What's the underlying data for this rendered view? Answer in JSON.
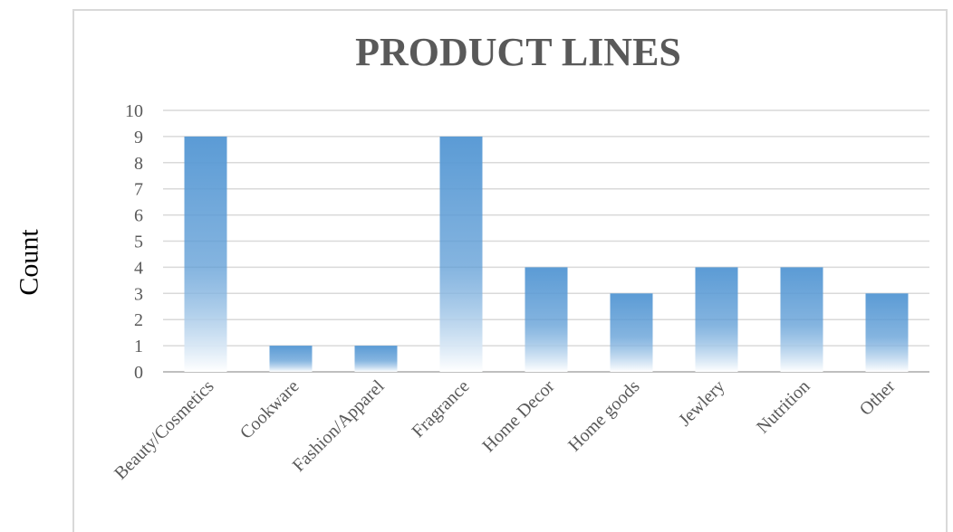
{
  "chart_data": {
    "type": "bar",
    "title": "PRODUCT LINES",
    "ylabel": "Count",
    "xlabel": "",
    "categories": [
      "Beauty/Cosmetics",
      "Cookware",
      "Fashion/Apparel",
      "Fragrance",
      "Home Decor",
      "Home goods",
      "Jewlery",
      "Nutrition",
      "Other"
    ],
    "values": [
      9,
      1,
      1,
      9,
      4,
      3,
      4,
      4,
      3
    ],
    "ylim": [
      0,
      10
    ],
    "yticks": [
      0,
      1,
      2,
      3,
      4,
      5,
      6,
      7,
      8,
      9,
      10
    ],
    "grid": true,
    "legend": "none"
  },
  "colors": {
    "bar_top": "#5b9bd5",
    "bar_bottom": "#ffffff",
    "title": "#595959",
    "tick": "#595959",
    "grid": "#d9d9d9",
    "axis": "#bfbfbf"
  }
}
